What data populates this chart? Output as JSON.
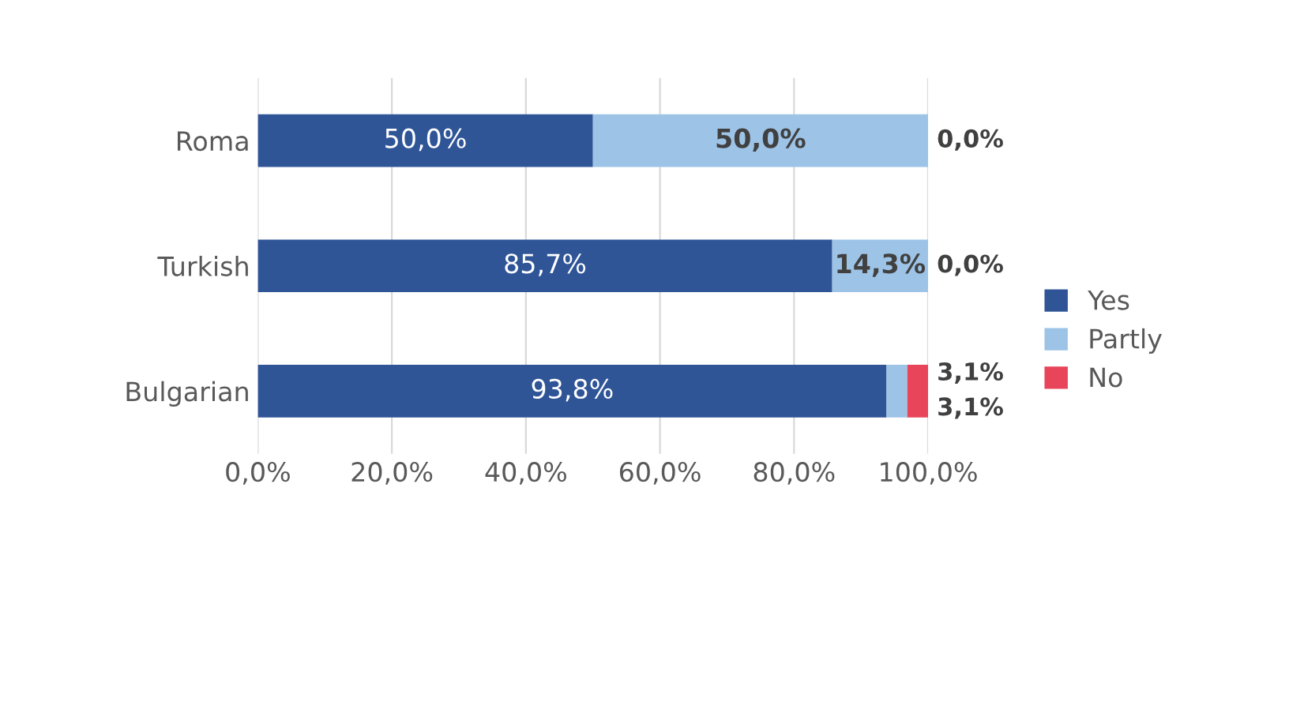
{
  "chart_data": {
    "type": "bar",
    "orientation": "horizontal",
    "stacked": true,
    "categories": [
      "Roma",
      "Turkish",
      "Bulgarian"
    ],
    "series": [
      {
        "name": "Yes",
        "color": "#2f5597",
        "values": [
          50.0,
          85.7,
          93.8
        ],
        "value_labels": [
          "50,0%",
          "85,7%",
          "93,8%"
        ]
      },
      {
        "name": "Partly",
        "color": "#9dc3e6",
        "values": [
          50.0,
          14.3,
          3.1
        ],
        "value_labels": [
          "50,0%",
          "14,3%",
          "3,1%"
        ]
      },
      {
        "name": "No",
        "color": "#e8455a",
        "values": [
          0.0,
          0.0,
          3.1
        ],
        "value_labels": [
          "0,0%",
          "0,0%",
          "3,1%"
        ]
      }
    ],
    "xlim": [
      0,
      100
    ],
    "xticks": [
      {
        "value": 0,
        "label": "0,0%"
      },
      {
        "value": 20,
        "label": "20,0%"
      },
      {
        "value": 40,
        "label": "40,0%"
      },
      {
        "value": 60,
        "label": "60,0%"
      },
      {
        "value": 80,
        "label": "80,0%"
      },
      {
        "value": 100,
        "label": "100,0%"
      }
    ],
    "grid": "x",
    "legend": "right"
  }
}
